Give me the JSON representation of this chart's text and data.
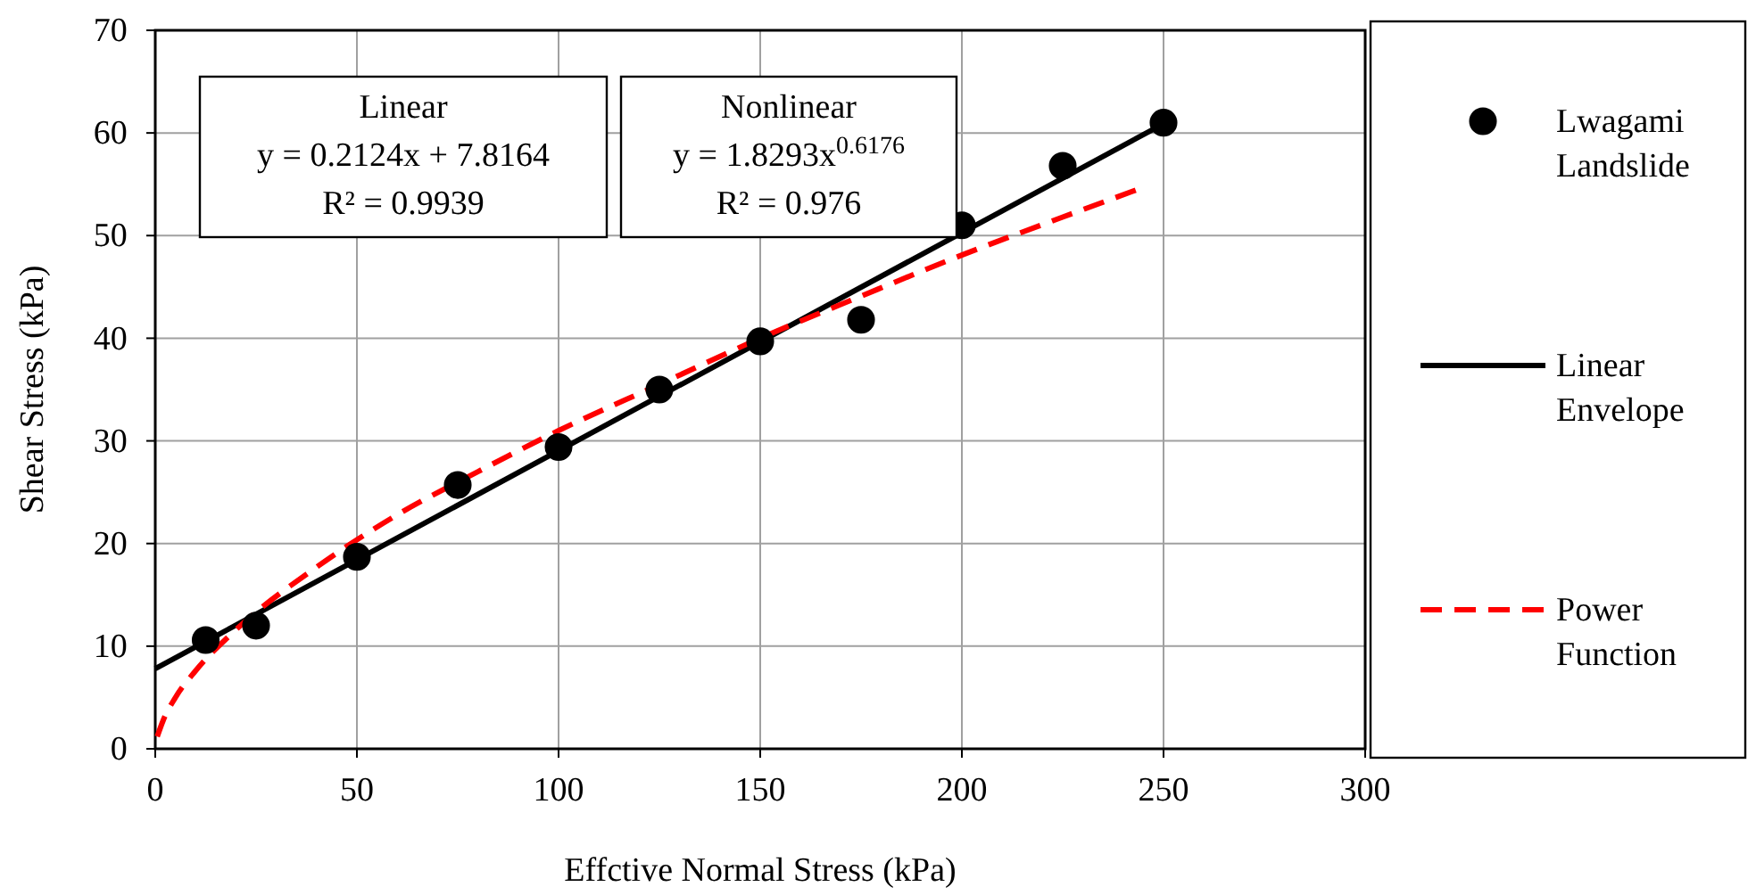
{
  "chart_data": {
    "type": "scatter",
    "xlabel": "Effctive Normal Stress (kPa)",
    "ylabel": "Shear Stress (kPa)",
    "xlim": [
      0,
      300
    ],
    "xticks": [
      0,
      50,
      100,
      150,
      200,
      250,
      300
    ],
    "ylim": [
      0,
      70
    ],
    "yticks": [
      0,
      10,
      20,
      30,
      40,
      50,
      60,
      70
    ],
    "grid": true,
    "legend": "right",
    "annotations": [
      "Linear\ny = 0.2124x + 7.8164\nR² = 0.9939",
      "Nonlinear\ny = 1.8293x$^{0.6176}$\nR² = 0.976"
    ],
    "series": [
      {
        "name": "Lwagami Landslide",
        "type": "scatter",
        "marker": "circle",
        "color": "#000000",
        "x": [
          12.5,
          25,
          50,
          75,
          100,
          125,
          150,
          175,
          200,
          225,
          250
        ],
        "values": [
          10.6,
          12,
          18.7,
          25.7,
          29.4,
          35,
          39.7,
          41.8,
          51,
          56.8,
          61
        ]
      },
      {
        "name": "Linear Envelope",
        "type": "line",
        "line_style": "solid",
        "color": "#000000",
        "x": [
          0,
          250
        ],
        "values": [
          7.8,
          60.9
        ]
      },
      {
        "name": "Power Function",
        "type": "line",
        "line_style": "dashed",
        "color": "#ff0000",
        "x": [
          0.5,
          2,
          5,
          10,
          20,
          40,
          60,
          80,
          100,
          125,
          150,
          175,
          200,
          225,
          245
        ],
        "values": [
          1.2,
          2.8,
          5,
          7.6,
          11.6,
          17.7,
          22.8,
          27,
          31,
          35.5,
          40,
          44.1,
          48.1,
          51.8,
          54.7
        ]
      }
    ]
  }
}
